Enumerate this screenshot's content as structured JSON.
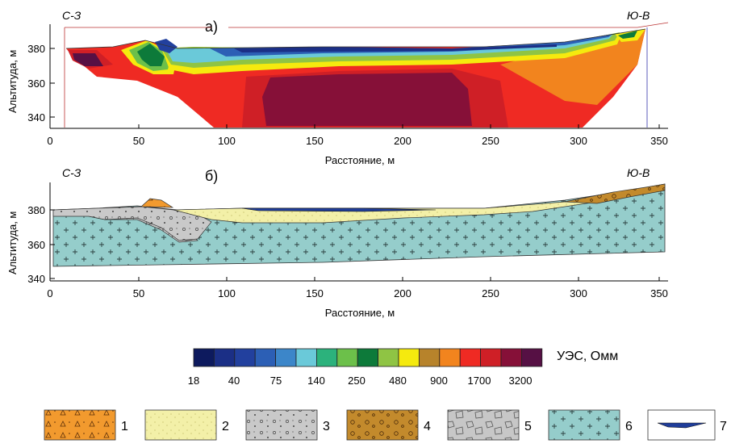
{
  "panel_a": {
    "label": "а)",
    "left_dir": "С-З",
    "right_dir": "Ю-В",
    "ylabel": "Альтитуда, м",
    "xlabel": "Расстояние, м",
    "xticks": [
      "0",
      "50",
      "100",
      "150",
      "200",
      "250",
      "300",
      "350"
    ],
    "yticks": [
      "380",
      "360",
      "340"
    ]
  },
  "panel_b": {
    "label": "б)",
    "left_dir": "С-З",
    "right_dir": "Ю-В",
    "ylabel": "Альтитуда, м",
    "xlabel": "Расстояние, м",
    "xticks": [
      "0",
      "50",
      "100",
      "150",
      "200",
      "250",
      "300",
      "350"
    ],
    "yticks": [
      "380",
      "360",
      "340"
    ]
  },
  "colorbar": {
    "title": "УЭС, Омм",
    "labels": [
      "18",
      "40",
      "75",
      "140",
      "250",
      "480",
      "900",
      "1700",
      "3200"
    ],
    "colors": [
      "#0d1a5e",
      "#1b2f86",
      "#22409e",
      "#2c5fb5",
      "#3c86c9",
      "#6ac9d9",
      "#2cb27c",
      "#6cc04a",
      "#0d7a3a",
      "#8fc444",
      "#f5ea0e",
      "#b7832b",
      "#f2841e",
      "#ef2a23",
      "#cf1f26",
      "#861038",
      "#561044"
    ]
  },
  "legend": [
    {
      "num": "1",
      "pattern": "orange-triangles"
    },
    {
      "num": "2",
      "pattern": "yellow-dotted"
    },
    {
      "num": "3",
      "pattern": "gray-pebbles"
    },
    {
      "num": "4",
      "pattern": "brown-gravel"
    },
    {
      "num": "5",
      "pattern": "gray-blocks"
    },
    {
      "num": "6",
      "pattern": "teal-crosses"
    },
    {
      "num": "7",
      "pattern": "blue-lens"
    }
  ]
}
